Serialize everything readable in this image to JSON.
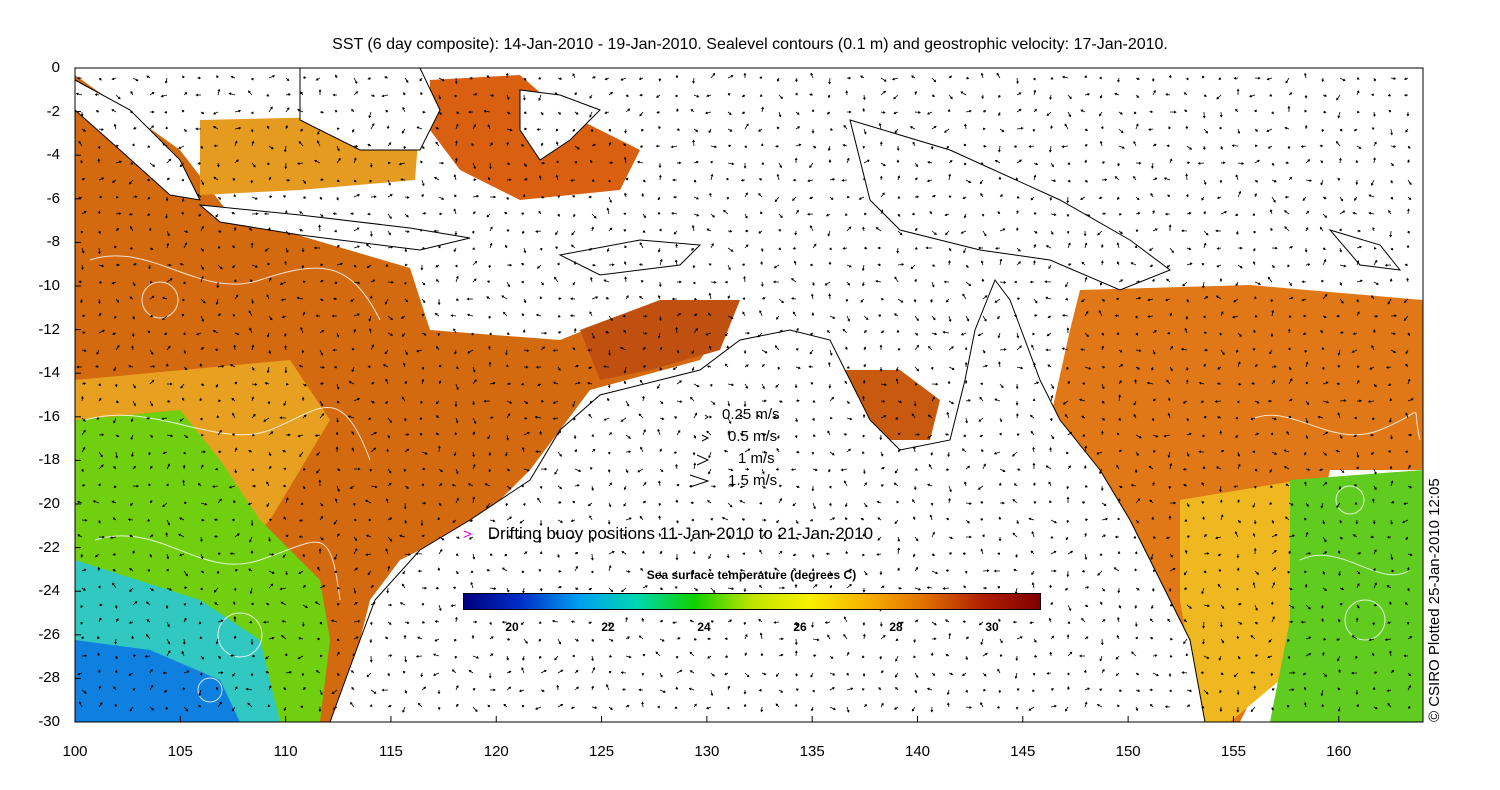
{
  "title": "SST (6 day composite): 14-Jan-2010 - 19-Jan-2010. Sealevel contours (0.1 m) and geostrophic velocity: 17-Jan-2010.",
  "credit": "© CSIRO Plotted 25-Jan-2010 12:05",
  "axes": {
    "x_ticks": [
      "100",
      "105",
      "110",
      "115",
      "120",
      "125",
      "130",
      "135",
      "140",
      "145",
      "150",
      "155",
      "160"
    ],
    "y_ticks": [
      "0",
      "-2",
      "-4",
      "-6",
      "-8",
      "-10",
      "-12",
      "-14",
      "-16",
      "-18",
      "-20",
      "-22",
      "-24",
      "-26",
      "-28",
      "-30"
    ],
    "lon_range": [
      100,
      164
    ],
    "lat_range": [
      -30,
      0
    ]
  },
  "velocity_legend": [
    {
      "label": "0.25 m/s",
      "speed": 0.25
    },
    {
      "label": "0.5 m/s",
      "speed": 0.5
    },
    {
      "label": "1 m/s",
      "speed": 1
    },
    {
      "label": "1.5 m/s",
      "speed": 1.5
    }
  ],
  "buoy_legend": {
    "label": "Drifting buoy positions 11-Jan-2010 to 21-Jan-2010",
    "color": "#e000e0"
  },
  "colorbar": {
    "title": "Sea surface temperature (degrees C)",
    "range": [
      19,
      31
    ],
    "ticks": [
      "20",
      "22",
      "24",
      "26",
      "28",
      "30"
    ],
    "colors": [
      "#00007f",
      "#0030c8",
      "#00a0f0",
      "#00d8b0",
      "#10d000",
      "#c0e400",
      "#f8f000",
      "#f8b000",
      "#e07000",
      "#b02000",
      "#800000"
    ]
  },
  "colors": {
    "land": "#ffffff",
    "coast": "#000000",
    "contour": "#ffffff",
    "vector": "#000000"
  }
}
